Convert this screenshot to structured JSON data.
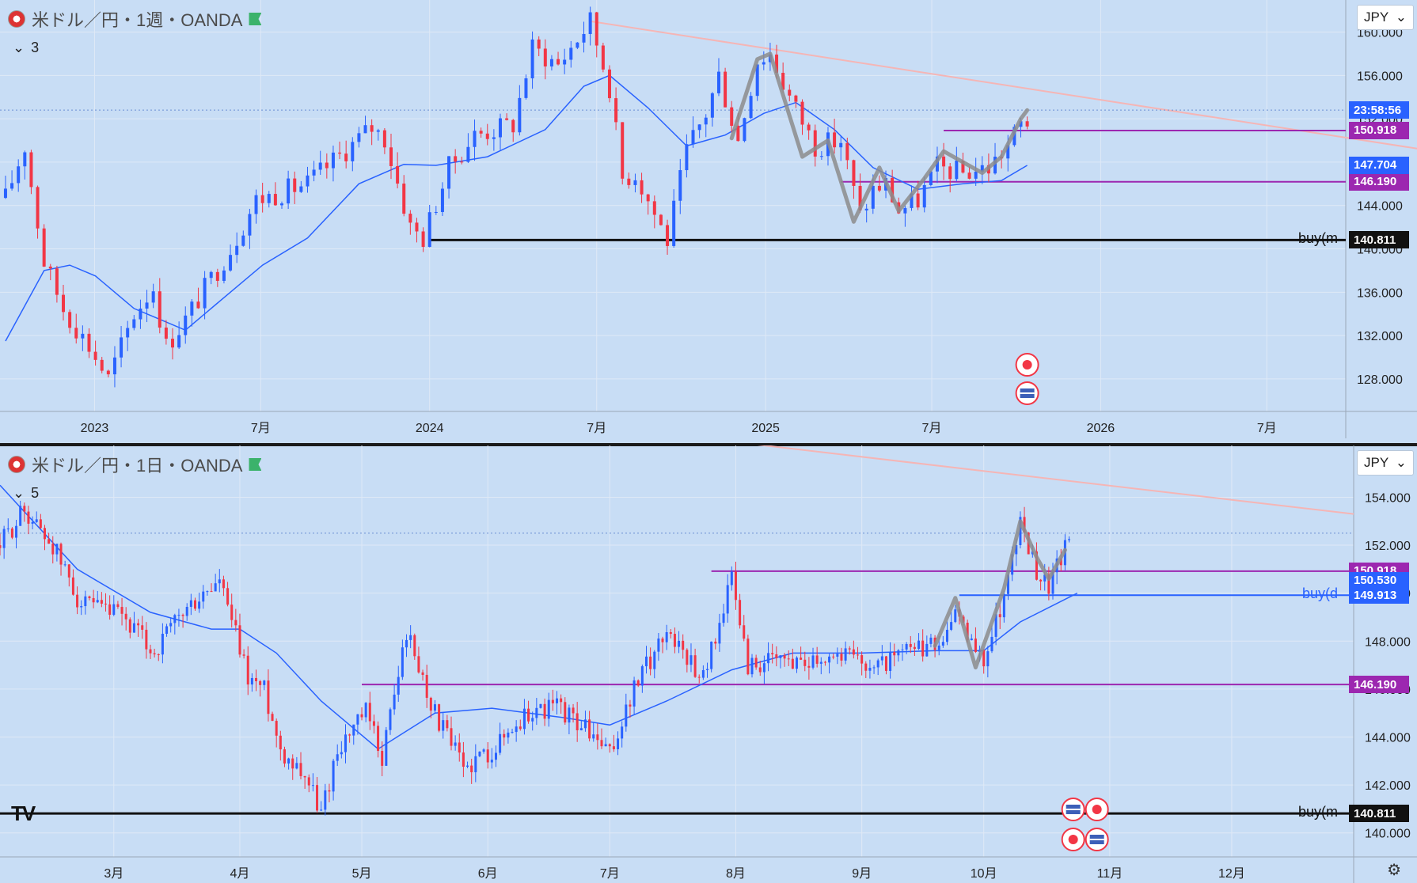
{
  "chart_data": [
    {
      "type": "line",
      "panel": "top",
      "title": "米ドル／円・1週・OANDA",
      "indicator_label": "3",
      "currency": "JPY",
      "ylim": [
        125,
        161.5
      ],
      "y_ticks": [
        128,
        132,
        136,
        140,
        144,
        148,
        152,
        156,
        160
      ],
      "y_tick_labels": [
        "128.000",
        "132.000",
        "136.000",
        "140.000",
        "144.000",
        "148.000",
        "152.000",
        "156.000",
        "160.000"
      ],
      "x_tick_labels": [
        "2023",
        "7月",
        "2024",
        "7月",
        "2025",
        "7月",
        "2026",
        "7月"
      ],
      "x_tick_dates": [
        "2023-01-01",
        "2023-07-01",
        "2024-01-01",
        "2024-07-01",
        "2025-01-01",
        "2025-07-01",
        "2026-01-01",
        "2026-07-01"
      ],
      "price_series": {
        "name": "",
        "points": [
          [
            "2022-09-26",
            144.7
          ],
          [
            "2022-10-17",
            149.5
          ],
          [
            "2022-11-07",
            138.8
          ],
          [
            "2022-11-28",
            134.5
          ],
          [
            "2022-12-26",
            131.0
          ],
          [
            "2023-01-16",
            128.0
          ],
          [
            "2023-02-13",
            134.0
          ],
          [
            "2023-03-06",
            136.5
          ],
          [
            "2023-03-20",
            131.0
          ],
          [
            "2023-04-10",
            133.5
          ],
          [
            "2023-05-29",
            140.0
          ],
          [
            "2023-06-26",
            144.5
          ],
          [
            "2023-08-21",
            146.0
          ],
          [
            "2023-10-30",
            151.2
          ],
          [
            "2023-11-13",
            150.2
          ],
          [
            "2023-12-11",
            142.0
          ],
          [
            "2023-12-25",
            141.0
          ],
          [
            "2024-01-22",
            147.5
          ],
          [
            "2024-02-19",
            150.5
          ],
          [
            "2024-04-01",
            151.5
          ],
          [
            "2024-04-22",
            158.5
          ],
          [
            "2024-05-20",
            157.0
          ],
          [
            "2024-06-24",
            161.0
          ],
          [
            "2024-07-15",
            155.0
          ],
          [
            "2024-07-29",
            146.5
          ],
          [
            "2024-08-12",
            147.0
          ],
          [
            "2024-09-16",
            140.8
          ],
          [
            "2024-10-07",
            149.0
          ],
          [
            "2024-10-28",
            152.5
          ],
          [
            "2024-11-11",
            156.0
          ],
          [
            "2024-12-02",
            150.0
          ],
          [
            "2024-12-23",
            157.5
          ],
          [
            "2025-01-06",
            158.0
          ],
          [
            "2025-01-27",
            154.0
          ],
          [
            "2025-02-24",
            149.5
          ],
          [
            "2025-03-24",
            150.0
          ],
          [
            "2025-04-14",
            143.0
          ],
          [
            "2025-04-28",
            145.5
          ],
          [
            "2025-05-12",
            146.0
          ],
          [
            "2025-05-26",
            143.5
          ],
          [
            "2025-06-16",
            144.5
          ],
          [
            "2025-07-07",
            147.5
          ],
          [
            "2025-08-04",
            147.0
          ],
          [
            "2025-09-01",
            147.5
          ],
          [
            "2025-09-22",
            149.5
          ],
          [
            "2025-10-06",
            151.5
          ],
          [
            "2025-10-20",
            152.0
          ]
        ]
      },
      "moving_average": {
        "name": "",
        "color": "#2962ff",
        "points": [
          [
            "2022-09-26",
            131.5
          ],
          [
            "2022-11-07",
            138.0
          ],
          [
            "2022-12-05",
            138.5
          ],
          [
            "2023-01-02",
            137.5
          ],
          [
            "2023-02-13",
            134.5
          ],
          [
            "2023-03-13",
            133.5
          ],
          [
            "2023-04-10",
            132.5
          ],
          [
            "2023-05-15",
            135.0
          ],
          [
            "2023-07-03",
            138.5
          ],
          [
            "2023-08-21",
            141.0
          ],
          [
            "2023-10-16",
            146.0
          ],
          [
            "2023-12-04",
            147.8
          ],
          [
            "2024-01-08",
            147.7
          ],
          [
            "2024-03-04",
            148.5
          ],
          [
            "2024-05-06",
            151.0
          ],
          [
            "2024-06-17",
            155.0
          ],
          [
            "2024-07-15",
            156.0
          ],
          [
            "2024-08-26",
            153.0
          ],
          [
            "2024-10-07",
            149.5
          ],
          [
            "2024-11-18",
            150.5
          ],
          [
            "2024-12-30",
            152.5
          ],
          [
            "2025-02-03",
            153.5
          ],
          [
            "2025-03-17",
            151.0
          ],
          [
            "2025-04-28",
            147.5
          ],
          [
            "2025-06-16",
            145.5
          ],
          [
            "2025-08-04",
            146.0
          ],
          [
            "2025-09-15",
            146.3
          ],
          [
            "2025-10-13",
            147.7
          ]
        ]
      },
      "horizontal_lines": [
        {
          "price": 150.918,
          "label": "150.918",
          "color": "#9c27b0",
          "from": "2025-07-14"
        },
        {
          "price": 146.19,
          "label": "146.190",
          "color": "#9c27b0",
          "from": "2025-03-24"
        },
        {
          "price": 140.811,
          "label": "140.811",
          "color": "#111111",
          "from": "2024-01-01",
          "note": "buy(m"
        },
        {
          "price": 147.704,
          "label": "147.704",
          "color": "#2962ff",
          "badge_only": true
        },
        {
          "price": 152.8,
          "label": "23:58:56",
          "color": "#2962ff",
          "badge_only": true
        }
      ],
      "trendline": {
        "color": "#f5b5b5",
        "start": [
          "2024-06-24",
          161.0
        ],
        "end": [
          "2026-12-31",
          149.0
        ]
      }
    },
    {
      "type": "line",
      "panel": "bottom",
      "title": "米ドル／円・1日・OANDA",
      "indicator_label": "5",
      "currency": "JPY",
      "ylim": [
        139,
        155.5
      ],
      "y_ticks": [
        140,
        142,
        144,
        146,
        148,
        150,
        152,
        154
      ],
      "y_tick_labels": [
        "140.000",
        "142.000",
        "144.000",
        "146.000",
        "148.000",
        "150.000",
        "152.000",
        "154.000"
      ],
      "x_tick_labels": [
        "3月",
        "4月",
        "5月",
        "6月",
        "7月",
        "8月",
        "9月",
        "10月",
        "11月",
        "12月"
      ],
      "x_tick_dates": [
        "2025-03-01",
        "2025-04-01",
        "2025-05-01",
        "2025-06-01",
        "2025-07-01",
        "2025-08-01",
        "2025-09-01",
        "2025-10-01",
        "2025-11-01",
        "2025-12-01"
      ],
      "price_series": {
        "name": "",
        "points": [
          [
            "2025-02-01",
            152.0
          ],
          [
            "2025-02-07",
            153.5
          ],
          [
            "2025-02-14",
            152.0
          ],
          [
            "2025-02-21",
            149.5
          ],
          [
            "2025-03-03",
            149.0
          ],
          [
            "2025-03-11",
            147.5
          ],
          [
            "2025-03-17",
            149.0
          ],
          [
            "2025-03-27",
            150.5
          ],
          [
            "2025-04-03",
            146.5
          ],
          [
            "2025-04-07",
            146.0
          ],
          [
            "2025-04-11",
            143.5
          ],
          [
            "2025-04-17",
            142.5
          ],
          [
            "2025-04-21",
            140.8
          ],
          [
            "2025-04-25",
            143.5
          ],
          [
            "2025-05-02",
            145.0
          ],
          [
            "2025-05-06",
            143.2
          ],
          [
            "2025-05-12",
            148.4
          ],
          [
            "2025-05-19",
            145.0
          ],
          [
            "2025-05-26",
            142.7
          ],
          [
            "2025-06-02",
            143.5
          ],
          [
            "2025-06-11",
            145.0
          ],
          [
            "2025-06-18",
            145.3
          ],
          [
            "2025-06-26",
            144.2
          ],
          [
            "2025-07-01",
            143.2
          ],
          [
            "2025-07-07",
            146.0
          ],
          [
            "2025-07-15",
            148.5
          ],
          [
            "2025-07-24",
            146.5
          ],
          [
            "2025-07-31",
            150.6
          ],
          [
            "2025-08-04",
            147.0
          ],
          [
            "2025-08-15",
            147.2
          ],
          [
            "2025-08-27",
            147.5
          ],
          [
            "2025-09-05",
            147.0
          ],
          [
            "2025-09-12",
            147.5
          ],
          [
            "2025-09-19",
            147.8
          ],
          [
            "2025-09-24",
            149.0
          ],
          [
            "2025-10-01",
            147.2
          ],
          [
            "2025-10-06",
            150.0
          ],
          [
            "2025-10-10",
            152.9
          ],
          [
            "2025-10-14",
            151.0
          ],
          [
            "2025-10-17",
            150.3
          ],
          [
            "2025-10-23",
            152.5
          ]
        ]
      },
      "moving_average": {
        "name": "",
        "color": "#2962ff",
        "points": [
          [
            "2025-02-01",
            154.5
          ],
          [
            "2025-02-20",
            151.0
          ],
          [
            "2025-03-10",
            149.2
          ],
          [
            "2025-03-25",
            148.5
          ],
          [
            "2025-04-01",
            148.5
          ],
          [
            "2025-04-10",
            147.5
          ],
          [
            "2025-04-21",
            145.5
          ],
          [
            "2025-05-05",
            143.5
          ],
          [
            "2025-05-19",
            145.0
          ],
          [
            "2025-06-02",
            145.2
          ],
          [
            "2025-06-20",
            144.8
          ],
          [
            "2025-07-01",
            144.5
          ],
          [
            "2025-07-15",
            145.5
          ],
          [
            "2025-07-31",
            146.8
          ],
          [
            "2025-08-15",
            147.5
          ],
          [
            "2025-09-01",
            147.5
          ],
          [
            "2025-09-19",
            147.6
          ],
          [
            "2025-10-01",
            147.6
          ],
          [
            "2025-10-10",
            148.8
          ],
          [
            "2025-10-24",
            150.0
          ]
        ]
      },
      "horizontal_lines": [
        {
          "price": 150.918,
          "label": "150.918",
          "color": "#9c27b0",
          "from": "2025-07-26"
        },
        {
          "price": 150.53,
          "label": "150.530",
          "color": "#2962ff",
          "badge_only": true
        },
        {
          "price": 149.913,
          "label": "149.913",
          "color": "#2962ff",
          "from": "2025-09-25",
          "note": "buy(d"
        },
        {
          "price": 146.19,
          "label": "146.190",
          "color": "#9c27b0",
          "from": "2025-05-01"
        },
        {
          "price": 140.811,
          "label": "140.811",
          "color": "#111111",
          "from": "2025-01-01",
          "note": "buy(m"
        }
      ],
      "trendline": {
        "color": "#f5b5b5",
        "start": [
          "2025-06-01",
          157.5
        ],
        "end": [
          "2025-12-31",
          153.3
        ]
      }
    }
  ],
  "ui": {
    "logo_text": "TV"
  }
}
